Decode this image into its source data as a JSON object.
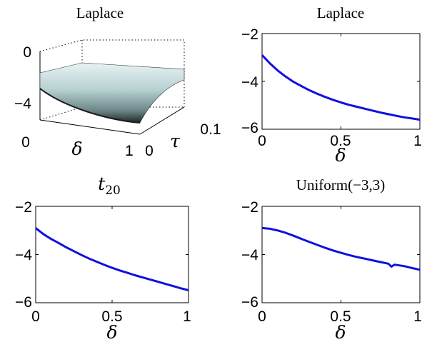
{
  "chart_data": [
    {
      "type": "surface",
      "title": "Laplace",
      "xlabel": "δ",
      "ylabel": "τ",
      "x_ticks": [
        "0",
        "1"
      ],
      "y_ticks": [
        "0",
        "0.1"
      ],
      "z_ticks": [
        "0",
        "−4"
      ],
      "xlim": [
        0,
        1
      ],
      "ylim": [
        0,
        0.1
      ],
      "zlim": [
        -6,
        0
      ],
      "x": [
        0,
        0.1,
        0.2,
        0.3,
        0.4,
        0.5,
        0.6,
        0.7,
        0.8,
        0.9,
        1.0
      ],
      "z_at_tau_0": [
        -3.2,
        -3.8,
        -4.3,
        -4.7,
        -5.0,
        -5.2,
        -5.4,
        -5.5,
        -5.6,
        -5.65,
        -5.7
      ],
      "z_at_tau_0.1": [
        -2.0,
        -1.95,
        -1.9,
        -1.85,
        -1.8,
        -1.75,
        -1.7,
        -1.65,
        -1.6,
        -1.55,
        -1.5
      ],
      "colormap": [
        "#1a1a1a",
        "#5e7c80",
        "#a9c7c7",
        "#e4f0f0"
      ],
      "grid": true
    },
    {
      "type": "line",
      "title": "Laplace",
      "xlabel": "δ",
      "x_ticks": [
        "0",
        "0.5",
        "1"
      ],
      "y_ticks": [
        "−2",
        "−4",
        "−6"
      ],
      "xlim": [
        0,
        1
      ],
      "ylim": [
        -6,
        -2
      ],
      "x": [
        0,
        0.05,
        0.1,
        0.15,
        0.2,
        0.25,
        0.3,
        0.35,
        0.4,
        0.45,
        0.5,
        0.55,
        0.6,
        0.65,
        0.7,
        0.75,
        0.8,
        0.85,
        0.9,
        0.95,
        1.0
      ],
      "y": [
        -2.9,
        -3.25,
        -3.55,
        -3.8,
        -4.02,
        -4.2,
        -4.37,
        -4.52,
        -4.65,
        -4.77,
        -4.88,
        -4.98,
        -5.06,
        -5.14,
        -5.22,
        -5.3,
        -5.37,
        -5.44,
        -5.5,
        -5.55,
        -5.6
      ],
      "color": "#1010e0"
    },
    {
      "type": "line",
      "title": "t",
      "title_subscript": "20",
      "xlabel": "δ",
      "x_ticks": [
        "0",
        "0.5",
        "1"
      ],
      "y_ticks": [
        "−2",
        "−4",
        "−6"
      ],
      "xlim": [
        0,
        1
      ],
      "ylim": [
        -6,
        -2
      ],
      "x": [
        0,
        0.05,
        0.1,
        0.15,
        0.2,
        0.25,
        0.3,
        0.35,
        0.4,
        0.45,
        0.5,
        0.55,
        0.6,
        0.65,
        0.7,
        0.75,
        0.8,
        0.85,
        0.9,
        0.95,
        1.0
      ],
      "y": [
        -2.9,
        -3.15,
        -3.35,
        -3.52,
        -3.7,
        -3.86,
        -4.02,
        -4.17,
        -4.3,
        -4.43,
        -4.55,
        -4.66,
        -4.76,
        -4.86,
        -4.95,
        -5.04,
        -5.13,
        -5.22,
        -5.31,
        -5.4,
        -5.48
      ],
      "color": "#1010e0"
    },
    {
      "type": "line",
      "title": "Uniform(−3,3)",
      "xlabel": "δ",
      "x_ticks": [
        "0",
        "0.5",
        "1"
      ],
      "y_ticks": [
        "−2",
        "−4",
        "−6"
      ],
      "xlim": [
        0,
        1
      ],
      "ylim": [
        -6,
        -2
      ],
      "x": [
        0,
        0.05,
        0.1,
        0.15,
        0.2,
        0.25,
        0.3,
        0.35,
        0.4,
        0.45,
        0.5,
        0.55,
        0.6,
        0.65,
        0.7,
        0.75,
        0.8,
        0.82,
        0.84,
        0.9,
        0.95,
        1.0
      ],
      "y": [
        -2.9,
        -2.93,
        -3.0,
        -3.1,
        -3.22,
        -3.35,
        -3.48,
        -3.6,
        -3.72,
        -3.83,
        -3.93,
        -4.02,
        -4.1,
        -4.17,
        -4.24,
        -4.31,
        -4.38,
        -4.5,
        -4.42,
        -4.48,
        -4.56,
        -4.63
      ],
      "color": "#1010e0"
    }
  ]
}
